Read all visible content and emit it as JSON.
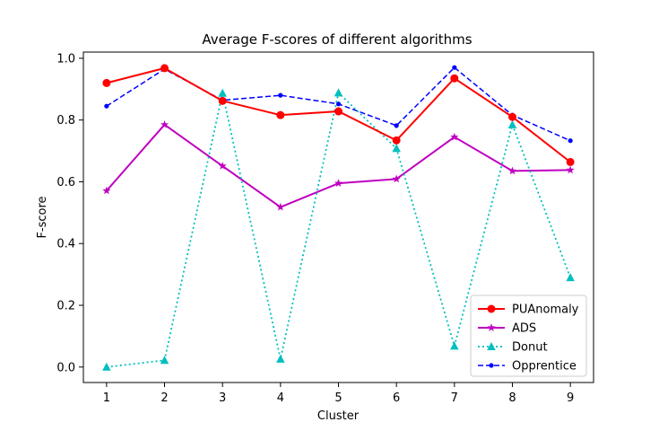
{
  "chart_data": {
    "type": "line",
    "title": "Average F-scores of different algorithms",
    "xlabel": "Cluster",
    "ylabel": "F-score",
    "x": [
      1,
      2,
      3,
      4,
      5,
      6,
      7,
      8,
      9
    ],
    "xlim": [
      0.6,
      9.4
    ],
    "ylim": [
      -0.05,
      1.02
    ],
    "x_ticks": [
      "1",
      "2",
      "3",
      "4",
      "5",
      "6",
      "7",
      "8",
      "9"
    ],
    "y_ticks": [
      "0.0",
      "0.2",
      "0.4",
      "0.6",
      "0.8",
      "1.0"
    ],
    "y_tick_values": [
      0.0,
      0.2,
      0.4,
      0.6,
      0.8,
      1.0
    ],
    "grid": false,
    "legend_position": "lower-right",
    "series": [
      {
        "name": "PUAnomaly",
        "values": [
          0.92,
          0.968,
          0.862,
          0.816,
          0.828,
          0.734,
          0.935,
          0.81,
          0.664
        ],
        "color": "#ff0000",
        "line_style": "solid",
        "marker": "circle"
      },
      {
        "name": "ADS",
        "values": [
          0.571,
          0.785,
          0.651,
          0.518,
          0.595,
          0.609,
          0.745,
          0.635,
          0.638
        ],
        "color": "#bf00bf",
        "line_style": "solid",
        "marker": "star"
      },
      {
        "name": "Donut",
        "values": [
          0.0,
          0.022,
          0.887,
          0.026,
          0.888,
          0.708,
          0.068,
          0.785,
          0.29
        ],
        "color": "#00bfbf",
        "line_style": "dotted",
        "marker": "triangle"
      },
      {
        "name": "Opprentice",
        "values": [
          0.845,
          0.965,
          0.864,
          0.88,
          0.852,
          0.782,
          0.97,
          0.816,
          0.733
        ],
        "color": "#0000ff",
        "line_style": "dashed",
        "marker": "point"
      }
    ]
  }
}
